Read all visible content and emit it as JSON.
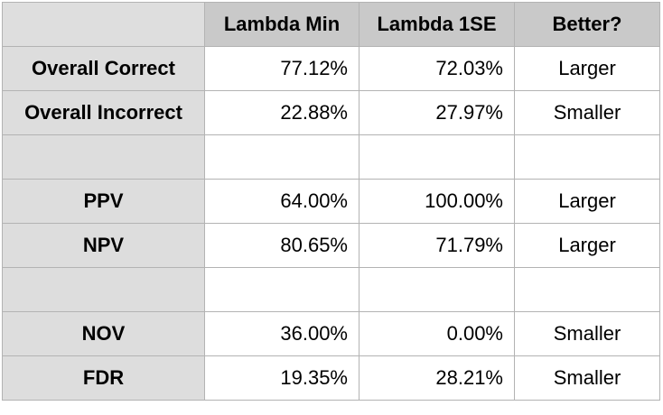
{
  "table": {
    "headers": [
      "",
      "Lambda Min",
      "Lambda 1SE",
      "Better?"
    ],
    "rows": [
      {
        "label": "Overall Correct",
        "lambda_min": "77.12%",
        "lambda_1se": "72.03%",
        "better": "Larger"
      },
      {
        "label": "Overall Incorrect",
        "lambda_min": "22.88%",
        "lambda_1se": "27.97%",
        "better": "Smaller"
      },
      {
        "label": "",
        "lambda_min": "",
        "lambda_1se": "",
        "better": ""
      },
      {
        "label": "PPV",
        "lambda_min": "64.00%",
        "lambda_1se": "100.00%",
        "better": "Larger"
      },
      {
        "label": "NPV",
        "lambda_min": "80.65%",
        "lambda_1se": "71.79%",
        "better": "Larger"
      },
      {
        "label": "",
        "lambda_min": "",
        "lambda_1se": "",
        "better": ""
      },
      {
        "label": "NOV",
        "lambda_min": "36.00%",
        "lambda_1se": "0.00%",
        "better": "Smaller"
      },
      {
        "label": "FDR",
        "lambda_min": "19.35%",
        "lambda_1se": "28.21%",
        "better": "Smaller"
      }
    ]
  },
  "colors": {
    "header_background": "#c9c9c9",
    "row_label_background": "#dddddd",
    "border": "#b3b3b3",
    "cell_background": "#ffffff"
  }
}
